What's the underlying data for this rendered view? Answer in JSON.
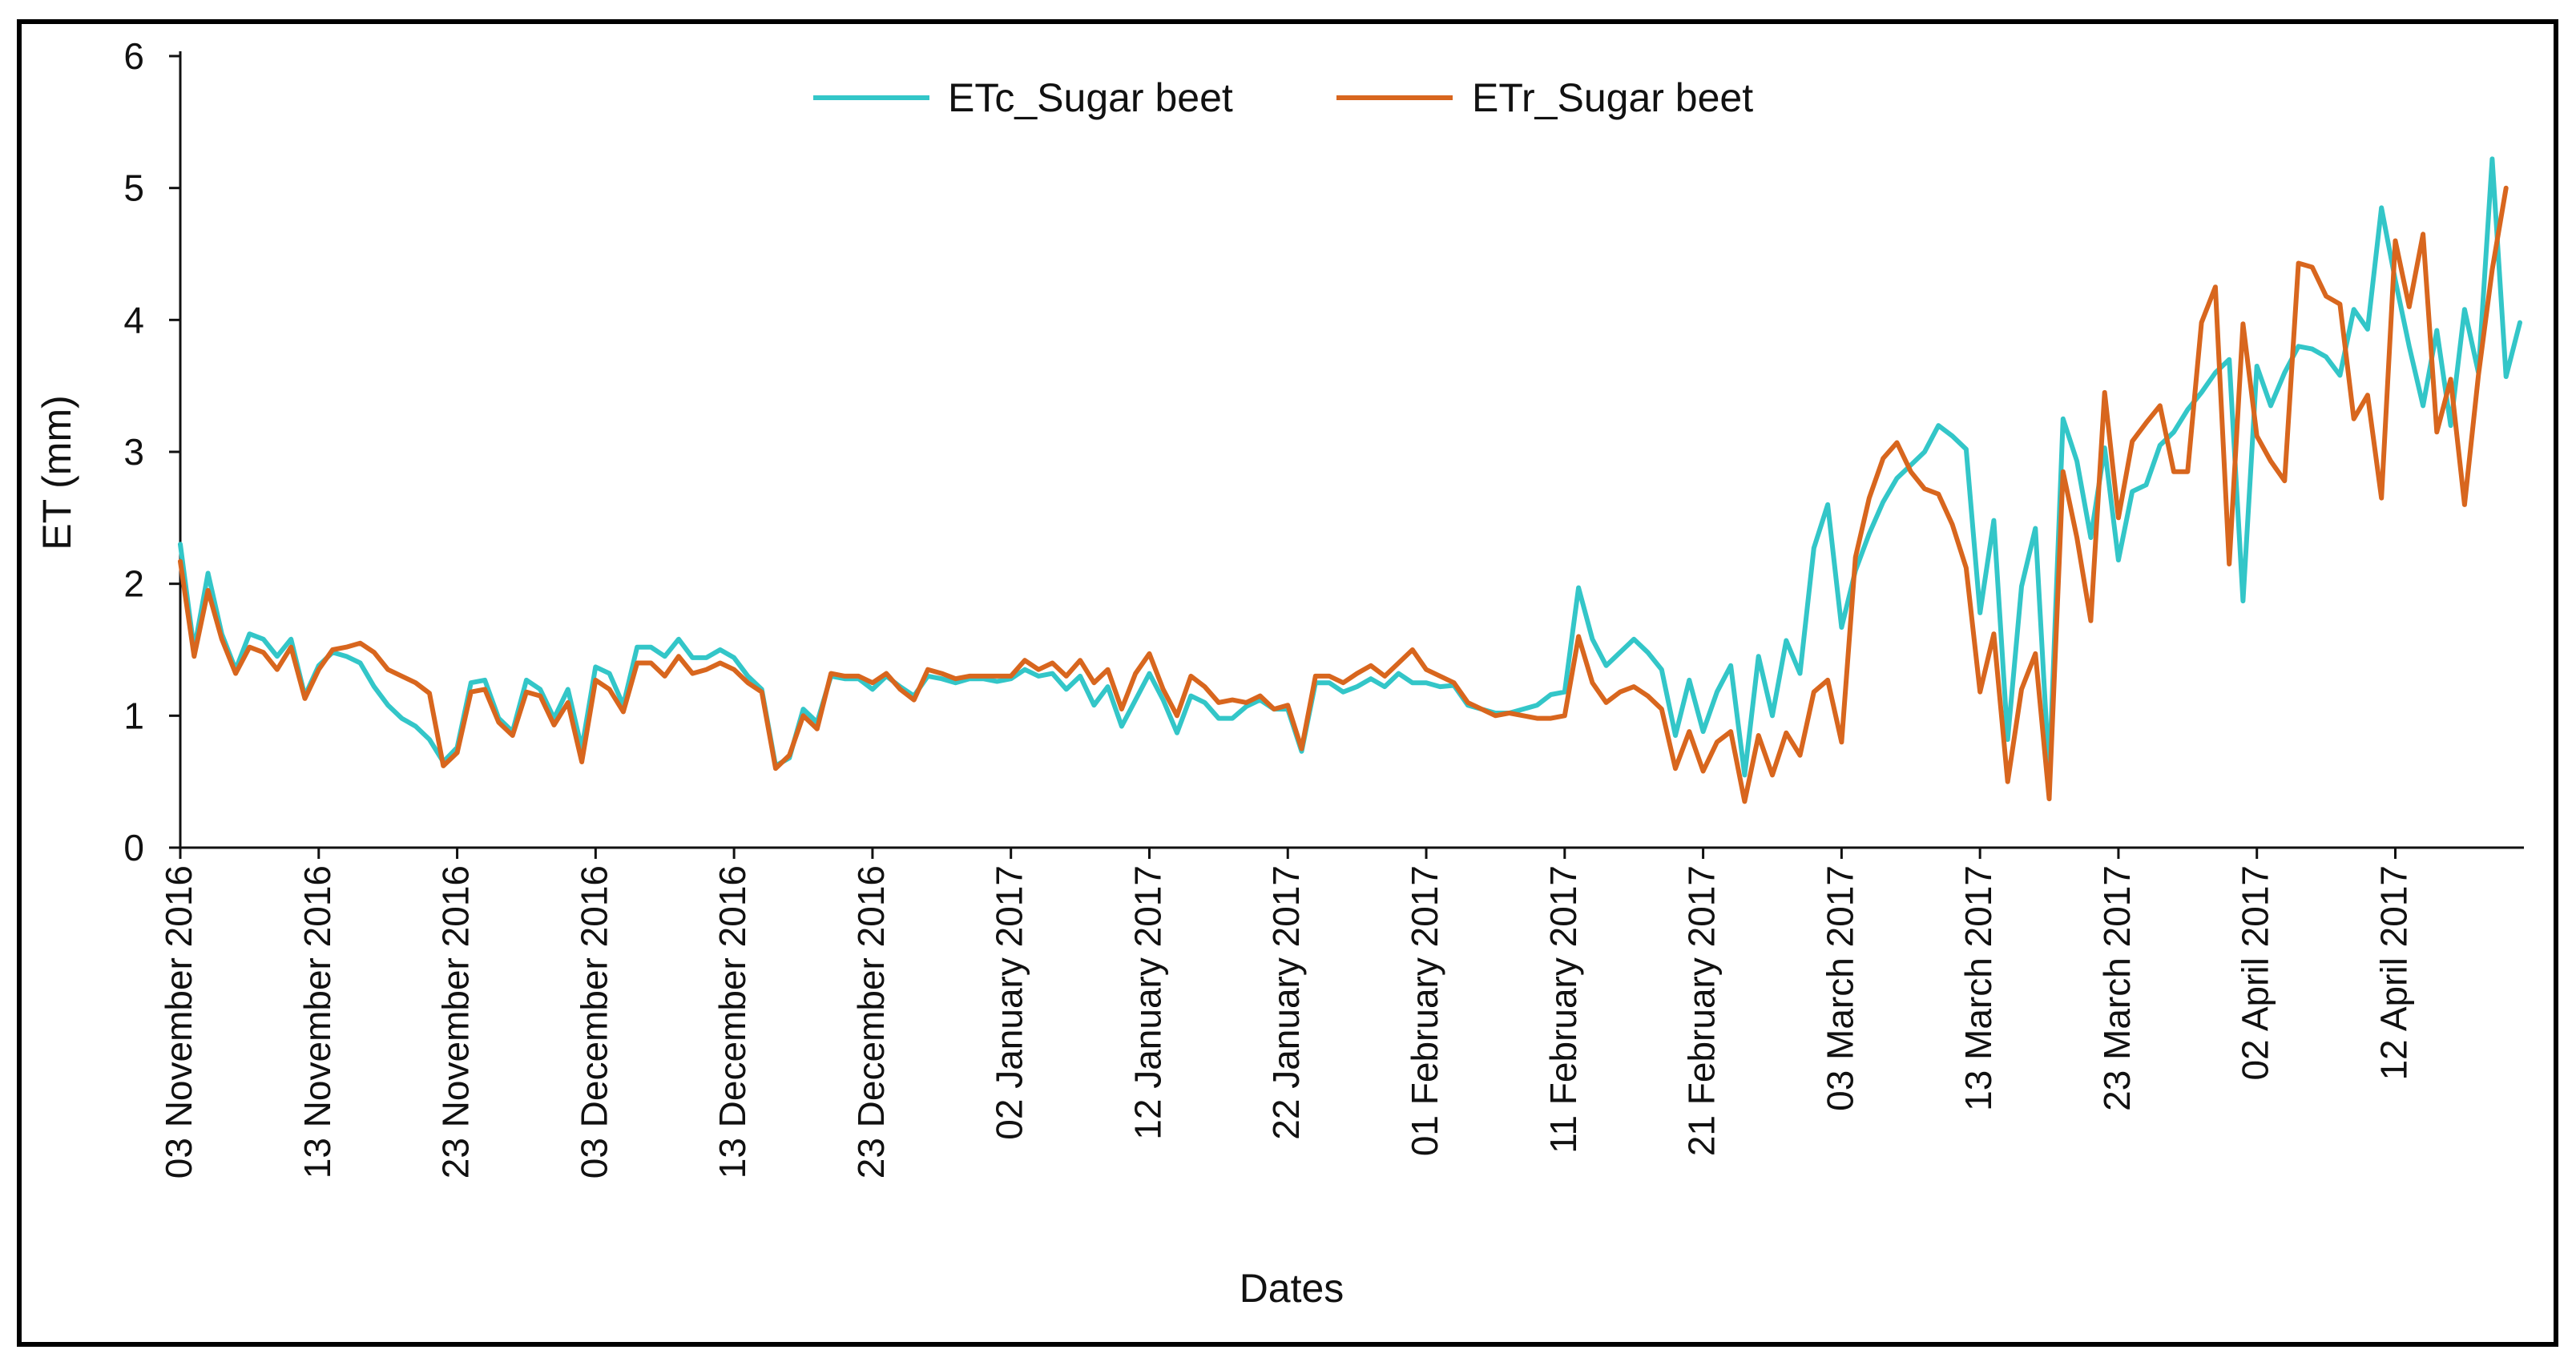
{
  "colors": {
    "etc": "#33C6C8",
    "etr": "#D8661E",
    "axis": "#111111",
    "frame": "#000000"
  },
  "chart_data": {
    "type": "line",
    "title": "",
    "xlabel": "Dates",
    "ylabel": "ET (mm)",
    "ylim": [
      0,
      6
    ],
    "yticks": [
      "0",
      "1",
      "2",
      "3",
      "4",
      "5",
      "6"
    ],
    "grid": false,
    "legend_position": "top-center",
    "x_start": "03 November 2016",
    "x_step_days": 1,
    "x_tick_every_days": 10,
    "x_ticks": [
      "03 November 2016",
      "13 November 2016",
      "23 November 2016",
      "03 December 2016",
      "13 December 2016",
      "23 December 2016",
      "02 January 2017",
      "12 January 2017",
      "22 January 2017",
      "01 February 2017",
      "11 February 2017",
      "21 February 2017",
      "03 March 2017",
      "13 March 2017",
      "23 March 2017",
      "02 April 2017",
      "12 April 2017"
    ],
    "series": [
      {
        "name": "ETc_Sugar beet",
        "values": [
          2.3,
          1.5,
          2.08,
          1.62,
          1.35,
          1.62,
          1.58,
          1.45,
          1.58,
          1.15,
          1.38,
          1.48,
          1.45,
          1.4,
          1.22,
          1.08,
          0.98,
          0.92,
          0.82,
          0.65,
          0.76,
          1.25,
          1.27,
          0.98,
          0.88,
          1.27,
          1.2,
          0.98,
          1.2,
          0.75,
          1.37,
          1.32,
          1.08,
          1.52,
          1.52,
          1.45,
          1.58,
          1.44,
          1.44,
          1.5,
          1.44,
          1.3,
          1.2,
          0.62,
          0.68,
          1.05,
          0.95,
          1.3,
          1.28,
          1.28,
          1.2,
          1.3,
          1.22,
          1.15,
          1.3,
          1.28,
          1.25,
          1.28,
          1.28,
          1.26,
          1.28,
          1.35,
          1.3,
          1.32,
          1.2,
          1.3,
          1.08,
          1.22,
          0.92,
          1.12,
          1.32,
          1.12,
          0.87,
          1.15,
          1.1,
          0.98,
          0.98,
          1.07,
          1.12,
          1.05,
          1.05,
          0.73,
          1.25,
          1.25,
          1.18,
          1.22,
          1.28,
          1.22,
          1.32,
          1.25,
          1.25,
          1.22,
          1.23,
          1.08,
          1.05,
          1.02,
          1.02,
          1.05,
          1.08,
          1.16,
          1.18,
          1.97,
          1.58,
          1.38,
          1.48,
          1.58,
          1.48,
          1.35,
          0.85,
          1.27,
          0.88,
          1.18,
          1.38,
          0.55,
          1.45,
          1.0,
          1.57,
          1.32,
          2.27,
          2.6,
          1.67,
          2.1,
          2.38,
          2.62,
          2.8,
          2.9,
          3.0,
          3.2,
          3.12,
          3.02,
          1.78,
          2.48,
          0.82,
          1.98,
          2.42,
          0.55,
          3.25,
          2.93,
          2.35,
          3.03,
          2.18,
          2.7,
          2.75,
          3.05,
          3.15,
          3.32,
          3.45,
          3.6,
          3.7,
          1.87,
          3.65,
          3.35,
          3.6,
          3.8,
          3.78,
          3.72,
          3.58,
          4.08,
          3.93,
          4.85,
          4.3,
          3.8,
          3.35,
          3.92,
          3.2,
          4.08,
          3.6,
          5.22,
          3.57,
          3.98
        ]
      },
      {
        "name": "ETr_Sugar beet",
        "values": [
          2.17,
          1.45,
          1.95,
          1.58,
          1.32,
          1.52,
          1.48,
          1.35,
          1.52,
          1.13,
          1.35,
          1.5,
          1.52,
          1.55,
          1.48,
          1.35,
          1.3,
          1.25,
          1.17,
          0.62,
          0.72,
          1.18,
          1.2,
          0.95,
          0.85,
          1.18,
          1.15,
          0.93,
          1.1,
          0.65,
          1.27,
          1.2,
          1.03,
          1.4,
          1.4,
          1.3,
          1.45,
          1.32,
          1.35,
          1.4,
          1.35,
          1.25,
          1.18,
          0.6,
          0.7,
          1.0,
          0.9,
          1.32,
          1.3,
          1.3,
          1.25,
          1.32,
          1.2,
          1.12,
          1.35,
          1.32,
          1.28,
          1.3,
          1.3,
          1.3,
          1.3,
          1.42,
          1.35,
          1.4,
          1.3,
          1.42,
          1.25,
          1.35,
          1.05,
          1.32,
          1.47,
          1.2,
          1.0,
          1.3,
          1.22,
          1.1,
          1.12,
          1.1,
          1.15,
          1.05,
          1.08,
          0.75,
          1.3,
          1.3,
          1.25,
          1.32,
          1.38,
          1.3,
          1.4,
          1.5,
          1.35,
          1.3,
          1.25,
          1.1,
          1.05,
          1.0,
          1.02,
          1.0,
          0.98,
          0.98,
          1.0,
          1.6,
          1.25,
          1.1,
          1.18,
          1.22,
          1.15,
          1.05,
          0.6,
          0.88,
          0.58,
          0.8,
          0.88,
          0.35,
          0.85,
          0.55,
          0.87,
          0.7,
          1.18,
          1.27,
          0.8,
          2.2,
          2.65,
          2.95,
          3.07,
          2.85,
          2.72,
          2.68,
          2.45,
          2.12,
          1.18,
          1.62,
          0.5,
          1.2,
          1.47,
          0.37,
          2.85,
          2.35,
          1.72,
          3.45,
          2.5,
          3.08,
          3.22,
          3.35,
          2.85,
          2.85,
          3.98,
          4.25,
          2.15,
          3.97,
          3.12,
          2.93,
          2.78,
          4.43,
          4.4,
          4.18,
          4.12,
          3.25,
          3.43,
          2.65,
          4.6,
          4.1,
          4.65,
          3.15,
          3.55,
          2.6,
          3.58,
          4.38,
          5.0
        ]
      }
    ]
  }
}
